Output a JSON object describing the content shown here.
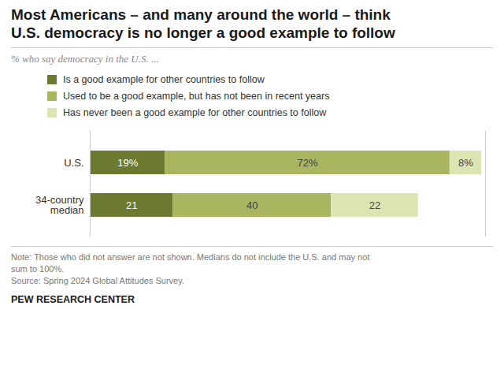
{
  "chart_data": {
    "type": "bar",
    "orientation": "horizontal",
    "stacked": true,
    "title": "Most Americans – and many around the world – think\nU.S. democracy is no longer a good example to follow",
    "subtitle": "% who say democracy in the U.S. ...",
    "categories": [
      "U.S.",
      "34-country\nmedian"
    ],
    "series": [
      {
        "name": "Is a good example for other countries to follow",
        "color": "#6b7a2e",
        "values": [
          19,
          21
        ],
        "value_labels": [
          "19%",
          "21"
        ]
      },
      {
        "name": "Used to be a good example, but has not been in recent years",
        "color": "#aab55f",
        "values": [
          72,
          40
        ],
        "value_labels": [
          "72%",
          "40"
        ]
      },
      {
        "name": "Has never been a good example for other countries to follow",
        "color": "#dce4b2",
        "values": [
          8,
          22
        ],
        "value_labels": [
          "8%",
          "22"
        ]
      }
    ],
    "xlim": [
      0,
      100
    ],
    "data_labels": true,
    "tick_labels": "y",
    "grid": false,
    "legend": "top",
    "annotations": [
      "Note: Those who did not answer are not shown. Medians do not include the U.S. and may not\nsum to 100%.\nSource: Spring 2024 Global Attitudes Survey.",
      "PEW RESEARCH CENTER"
    ]
  }
}
